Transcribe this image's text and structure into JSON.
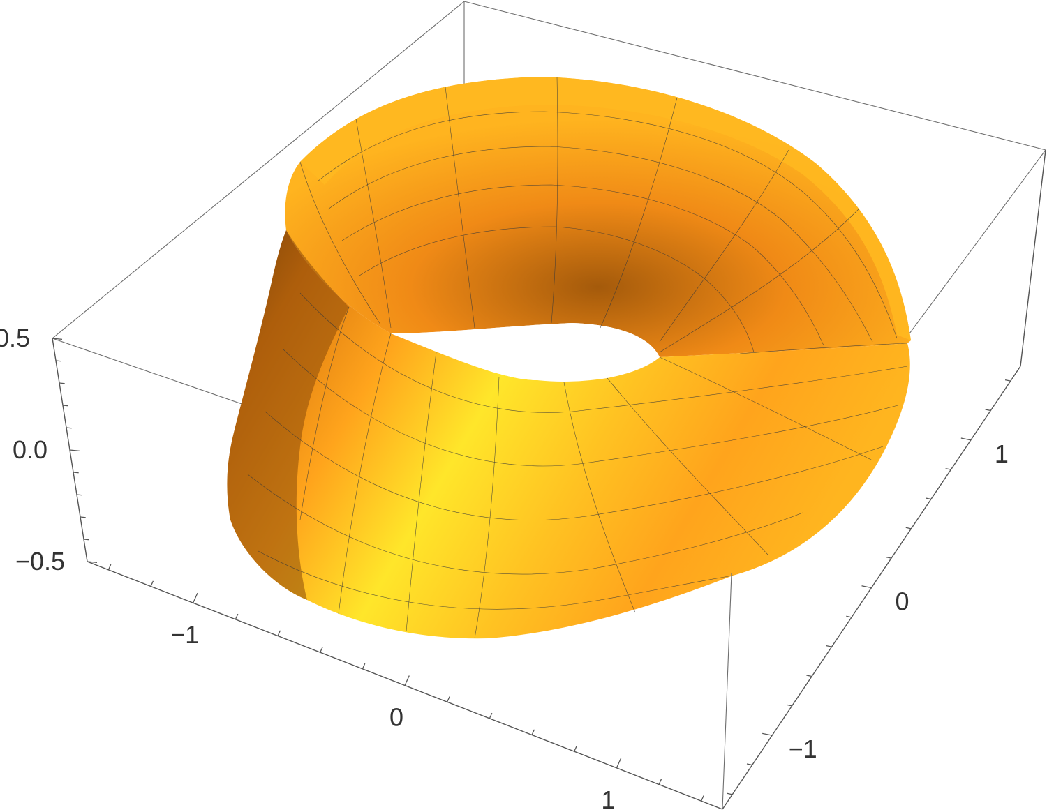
{
  "chart_data": {
    "type": "surface3d",
    "surface": "mobius-strip",
    "parametric": {
      "x": "(1 + v*cos(u/2))*cos(u)",
      "y": "(1 + v*cos(u/2))*sin(u)",
      "z": "v*sin(u/2)",
      "u_range": [
        0,
        6.2832
      ],
      "v_range": [
        -0.5,
        0.5
      ]
    },
    "mesh_lines": true,
    "colors": {
      "surface_light": "#ffe62a",
      "surface_mid": "#ffa41c",
      "surface_dark": "#6b3a08",
      "box": "#6e6e6e",
      "text": "#333333"
    },
    "axes": {
      "x": {
        "range": [
          -1.5,
          1.5
        ],
        "ticks": [
          -1,
          0,
          1
        ],
        "tick_labels": [
          "−1",
          "0",
          "1"
        ]
      },
      "y": {
        "range": [
          -1.5,
          1.5
        ],
        "ticks": [
          -1,
          0,
          1
        ],
        "tick_labels": [
          "−1",
          "0",
          "1"
        ]
      },
      "z": {
        "range": [
          -0.5,
          0.5
        ],
        "ticks": [
          -0.5,
          0,
          0.5
        ],
        "tick_labels": [
          "−0.5",
          "0.0",
          "0.5"
        ]
      }
    },
    "boxed": true,
    "title": "",
    "xlabel": "",
    "ylabel": "",
    "zlabel": ""
  }
}
